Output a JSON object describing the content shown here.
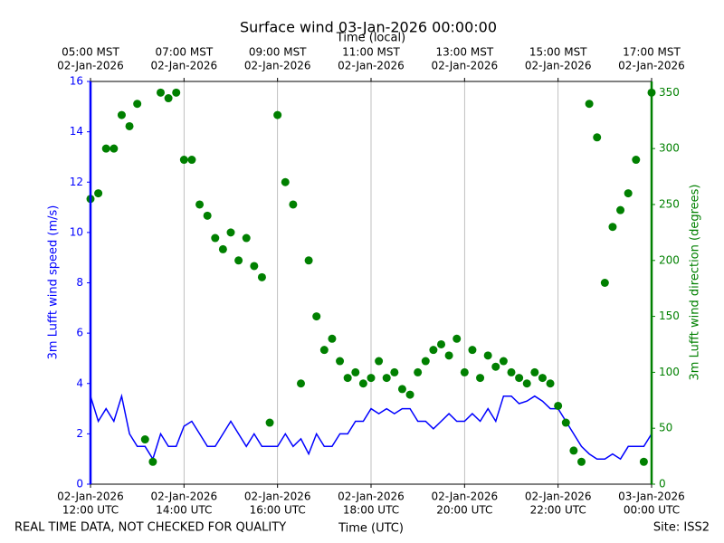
{
  "chart_data": {
    "type": "line-scatter",
    "title": "Surface wind 03-Jan-2026 00:00:00",
    "x2label": "Time (local)",
    "xlabel": "Time (UTC)",
    "ylabel": "3m Lufft wind speed (m/s)",
    "y2label": "3m Lufft wind direction (degrees)",
    "footer_left": "REAL TIME DATA, NOT CHECKED FOR QUALITY",
    "footer_right": "Site: ISS2",
    "grid": "x",
    "xlim": [
      "2026-01-02T12:00",
      "2026-01-03T00:00"
    ],
    "xticks": [
      {
        "value": "2026-01-02T12:00",
        "label": [
          "02-Jan-2026",
          "12:00 UTC"
        ]
      },
      {
        "value": "2026-01-02T14:00",
        "label": [
          "02-Jan-2026",
          "14:00 UTC"
        ]
      },
      {
        "value": "2026-01-02T16:00",
        "label": [
          "02-Jan-2026",
          "16:00 UTC"
        ]
      },
      {
        "value": "2026-01-02T18:00",
        "label": [
          "02-Jan-2026",
          "18:00 UTC"
        ]
      },
      {
        "value": "2026-01-02T20:00",
        "label": [
          "02-Jan-2026",
          "20:00 UTC"
        ]
      },
      {
        "value": "2026-01-02T22:00",
        "label": [
          "02-Jan-2026",
          "22:00 UTC"
        ]
      },
      {
        "value": "2026-01-03T00:00",
        "label": [
          "03-Jan-2026",
          "00:00 UTC"
        ]
      }
    ],
    "x2ticks": [
      {
        "value": "2026-01-02T12:00",
        "label": [
          "05:00 MST",
          "02-Jan-2026"
        ]
      },
      {
        "value": "2026-01-02T14:00",
        "label": [
          "07:00 MST",
          "02-Jan-2026"
        ]
      },
      {
        "value": "2026-01-02T16:00",
        "label": [
          "09:00 MST",
          "02-Jan-2026"
        ]
      },
      {
        "value": "2026-01-02T18:00",
        "label": [
          "11:00 MST",
          "02-Jan-2026"
        ]
      },
      {
        "value": "2026-01-02T20:00",
        "label": [
          "13:00 MST",
          "02-Jan-2026"
        ]
      },
      {
        "value": "2026-01-02T22:00",
        "label": [
          "15:00 MST",
          "02-Jan-2026"
        ]
      },
      {
        "value": "2026-01-03T00:00",
        "label": [
          "17:00 MST",
          "02-Jan-2026"
        ]
      }
    ],
    "ylim": [
      0,
      16
    ],
    "yticks": [
      0,
      2,
      4,
      6,
      8,
      10,
      12,
      14,
      16
    ],
    "y2lim": [
      0,
      360
    ],
    "y2ticks": [
      0,
      50,
      100,
      150,
      200,
      250,
      300,
      350
    ],
    "x": [
      "2026-01-02T12:00",
      "2026-01-02T12:10",
      "2026-01-02T12:20",
      "2026-01-02T12:30",
      "2026-01-02T12:40",
      "2026-01-02T12:50",
      "2026-01-02T13:00",
      "2026-01-02T13:10",
      "2026-01-02T13:20",
      "2026-01-02T13:30",
      "2026-01-02T13:40",
      "2026-01-02T13:50",
      "2026-01-02T14:00",
      "2026-01-02T14:10",
      "2026-01-02T14:20",
      "2026-01-02T14:30",
      "2026-01-02T14:40",
      "2026-01-02T14:50",
      "2026-01-02T15:00",
      "2026-01-02T15:10",
      "2026-01-02T15:20",
      "2026-01-02T15:30",
      "2026-01-02T15:40",
      "2026-01-02T15:50",
      "2026-01-02T16:00",
      "2026-01-02T16:10",
      "2026-01-02T16:20",
      "2026-01-02T16:30",
      "2026-01-02T16:40",
      "2026-01-02T16:50",
      "2026-01-02T17:00",
      "2026-01-02T17:10",
      "2026-01-02T17:20",
      "2026-01-02T17:30",
      "2026-01-02T17:40",
      "2026-01-02T17:50",
      "2026-01-02T18:00",
      "2026-01-02T18:10",
      "2026-01-02T18:20",
      "2026-01-02T18:30",
      "2026-01-02T18:40",
      "2026-01-02T18:50",
      "2026-01-02T19:00",
      "2026-01-02T19:10",
      "2026-01-02T19:20",
      "2026-01-02T19:30",
      "2026-01-02T19:40",
      "2026-01-02T19:50",
      "2026-01-02T20:00",
      "2026-01-02T20:10",
      "2026-01-02T20:20",
      "2026-01-02T20:30",
      "2026-01-02T20:40",
      "2026-01-02T20:50",
      "2026-01-02T21:00",
      "2026-01-02T21:10",
      "2026-01-02T21:20",
      "2026-01-02T21:30",
      "2026-01-02T21:40",
      "2026-01-02T21:50",
      "2026-01-02T22:00",
      "2026-01-02T22:10",
      "2026-01-02T22:20",
      "2026-01-02T22:30",
      "2026-01-02T22:40",
      "2026-01-02T22:50",
      "2026-01-02T23:00",
      "2026-01-02T23:10",
      "2026-01-02T23:20",
      "2026-01-02T23:30",
      "2026-01-02T23:40",
      "2026-01-02T23:50",
      "2026-01-03T00:00"
    ],
    "series": [
      {
        "type": "line",
        "color": "#0000ff",
        "axis": "y",
        "values": [
          3.5,
          2.5,
          3.0,
          2.5,
          3.5,
          2.0,
          1.5,
          1.5,
          1.0,
          2.0,
          1.5,
          1.5,
          2.3,
          2.5,
          2.0,
          1.5,
          1.5,
          2.0,
          2.5,
          2.0,
          1.5,
          2.0,
          1.5,
          1.5,
          1.5,
          2.0,
          1.5,
          1.8,
          1.2,
          2.0,
          1.5,
          1.5,
          2.0,
          2.0,
          2.5,
          2.5,
          3.0,
          2.8,
          3.0,
          2.8,
          3.0,
          3.0,
          2.5,
          2.5,
          2.2,
          2.5,
          2.8,
          2.5,
          2.5,
          2.8,
          2.5,
          3.0,
          2.5,
          3.5,
          3.5,
          3.2,
          3.3,
          3.5,
          3.3,
          3.0,
          3.0,
          2.5,
          2.0,
          1.5,
          1.2,
          1.0,
          1.0,
          1.2,
          1.0,
          1.5,
          1.5,
          1.5,
          2.0
        ]
      },
      {
        "type": "scatter",
        "color": "#008000",
        "axis": "y2",
        "values": [
          255,
          260,
          300,
          300,
          330,
          320,
          340,
          40,
          20,
          350,
          345,
          350,
          290,
          290,
          250,
          240,
          220,
          210,
          225,
          200,
          220,
          195,
          185,
          55,
          330,
          270,
          250,
          90,
          200,
          150,
          120,
          130,
          110,
          95,
          100,
          90,
          95,
          110,
          95,
          100,
          85,
          80,
          100,
          110,
          120,
          125,
          115,
          130,
          100,
          120,
          95,
          115,
          105,
          110,
          100,
          95,
          90,
          100,
          95,
          90,
          70,
          55,
          30,
          20,
          340,
          310,
          180,
          230,
          245,
          260,
          290,
          20,
          350
        ]
      }
    ]
  }
}
